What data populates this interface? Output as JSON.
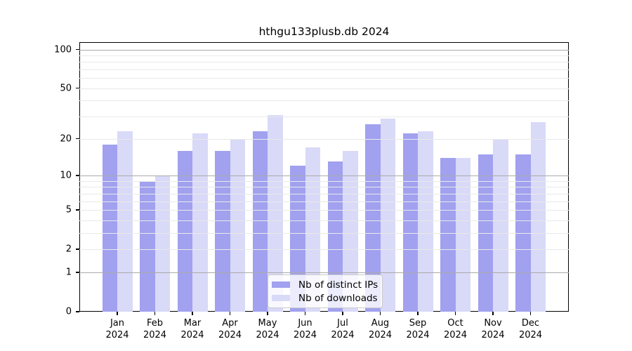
{
  "title": "hthgu133plusb.db 2024",
  "chart_data": {
    "type": "bar",
    "categories": [
      "Jan",
      "Feb",
      "Mar",
      "Apr",
      "May",
      "Jun",
      "Jul",
      "Aug",
      "Sep",
      "Oct",
      "Nov",
      "Dec"
    ],
    "year": "2024",
    "series": [
      {
        "name": "Nb of distinct IPs",
        "color": "#a1a1ef",
        "values": [
          18,
          9,
          16,
          16,
          23,
          12,
          13,
          26,
          22,
          14,
          15,
          15
        ]
      },
      {
        "name": "Nb of downloads",
        "color": "#d9d9f8",
        "values": [
          23,
          10,
          22,
          20,
          31,
          17,
          16,
          29,
          23,
          14,
          20,
          27
        ]
      }
    ],
    "yscale": "log1p",
    "ylim": [
      0,
      114
    ],
    "yticks": [
      0,
      1,
      2,
      5,
      10,
      20,
      50,
      100
    ],
    "grid": {
      "major": [
        1,
        10,
        100
      ],
      "minor": [
        2,
        3,
        4,
        5,
        6,
        7,
        8,
        9,
        20,
        30,
        40,
        50,
        60,
        70,
        80,
        90
      ],
      "on": true
    },
    "legend_position": "bottom-center"
  }
}
